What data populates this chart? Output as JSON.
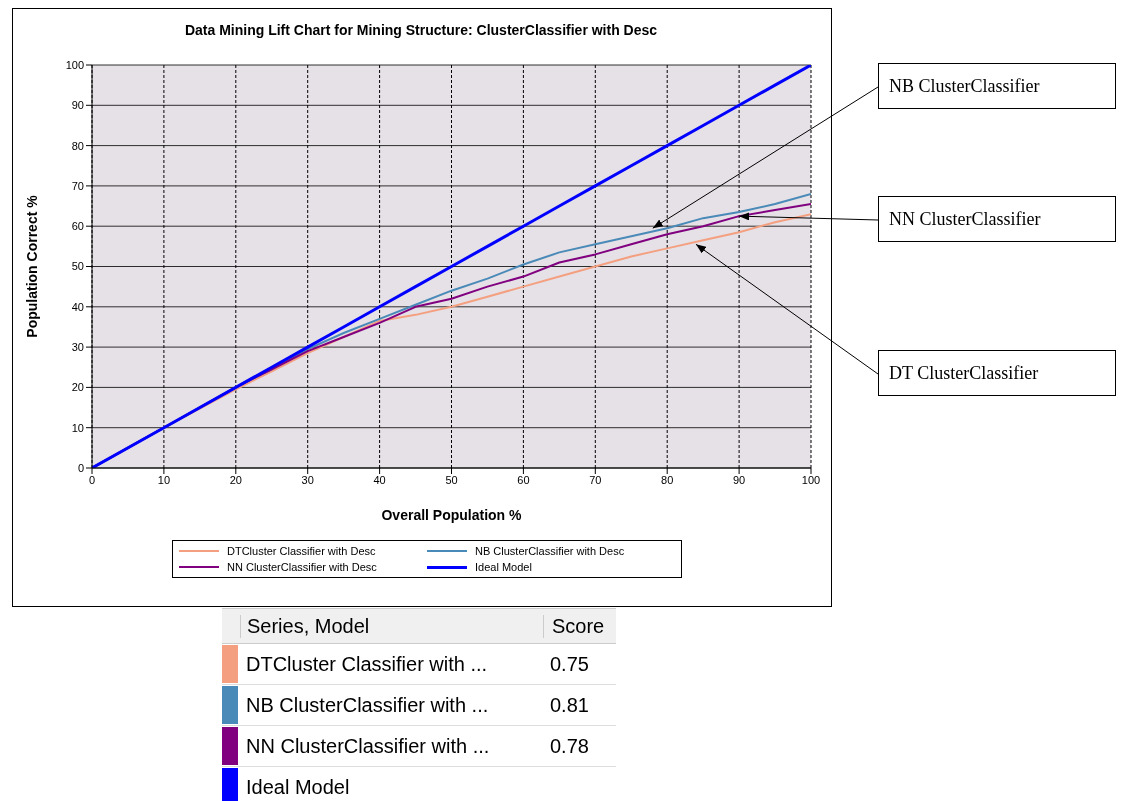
{
  "chart_data": {
    "type": "line",
    "title": "Data Mining Lift Chart for Mining Structure: ClusterClassifier with Desc",
    "xlabel": "Overall Population %",
    "ylabel": "Population Correct %",
    "x": [
      0,
      10,
      20,
      25,
      30,
      35,
      40,
      45,
      50,
      55,
      60,
      65,
      70,
      75,
      80,
      85,
      90,
      95,
      100
    ],
    "series": [
      {
        "name": "DTCluster Classifier with Desc",
        "color": "#f4a080",
        "values": [
          0,
          10,
          19.5,
          24,
          28.5,
          32.5,
          36.5,
          38,
          40,
          42.5,
          45,
          47.5,
          50,
          52.5,
          54.5,
          56.5,
          58.5,
          61,
          63
        ]
      },
      {
        "name": "NB ClusterClassifier with Desc",
        "color": "#4a8ab8",
        "values": [
          0,
          10,
          20,
          24.5,
          29.5,
          33.5,
          37,
          40.5,
          44,
          47,
          50.5,
          53.5,
          55.5,
          57.5,
          59.5,
          62,
          63.5,
          65.5,
          68
        ]
      },
      {
        "name": "NN ClusterClassifier with Desc",
        "color": "#800080",
        "values": [
          0,
          10,
          20,
          24.5,
          29,
          32.5,
          36,
          40,
          42,
          45,
          47.5,
          51,
          53,
          55.5,
          58,
          60,
          62.5,
          64,
          65.5
        ]
      },
      {
        "name": "Ideal Model",
        "color": "#0000ff",
        "values": [
          0,
          10,
          20,
          25,
          30,
          35,
          40,
          45,
          50,
          55,
          60,
          65,
          70,
          75,
          80,
          85,
          90,
          95,
          100
        ]
      }
    ],
    "xlim": [
      0,
      100
    ],
    "ylim": [
      0,
      100
    ],
    "xticks": [
      0,
      10,
      20,
      30,
      40,
      50,
      60,
      70,
      80,
      90,
      100
    ],
    "yticks": [
      0,
      10,
      20,
      30,
      40,
      50,
      60,
      70,
      80,
      90,
      100
    ],
    "grid": true,
    "legend": "bottom",
    "marker": "none",
    "line_style": "solid",
    "annotations": [
      {
        "text": "NB ClusterClassifier",
        "x": 78,
        "y": 59.5
      },
      {
        "text": "NN ClusterClassifier",
        "x": 90,
        "y": 62.5
      },
      {
        "text": "DT ClusterClassifier",
        "x": 84,
        "y": 55.5
      },
      "Series, Model",
      "Score",
      "DTCluster Classifier with ...",
      "NB ClusterClassifier with ...",
      "NN ClusterClassifier with ...",
      "Ideal Model",
      "0.75",
      "0.81",
      "0.78"
    ]
  }
}
